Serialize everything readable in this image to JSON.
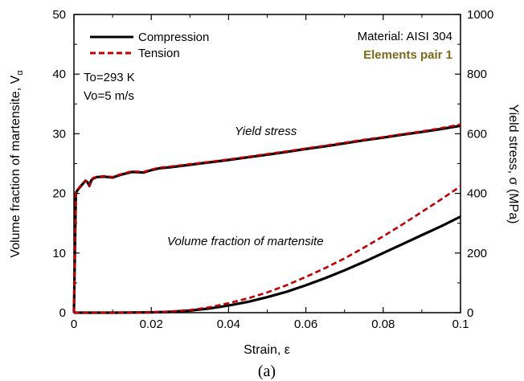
{
  "chart_data": {
    "type": "line",
    "caption": "(a)",
    "xlabel": "Strain, ε",
    "ylabel_left_main": "Volume fraction of martensite, V",
    "ylabel_left_sub": "α",
    "ylabel_right": "Yield stress, σ (MPa)",
    "xlim": [
      0,
      0.1
    ],
    "ylim_left": [
      0,
      50
    ],
    "ylim_right": [
      0,
      1000
    ],
    "x_ticks": [
      0,
      0.02,
      0.04,
      0.06,
      0.08,
      0.1
    ],
    "x_tick_labels": [
      "0",
      "0.02",
      "0.04",
      "0.06",
      "0.08",
      "0.1"
    ],
    "y_left_ticks": [
      0,
      10,
      20,
      30,
      40,
      50
    ],
    "y_left_tick_labels": [
      "0",
      "10",
      "20",
      "30",
      "40",
      "50"
    ],
    "y_right_ticks": [
      0,
      200,
      400,
      600,
      800,
      1000
    ],
    "y_right_tick_labels": [
      "0",
      "200",
      "400",
      "600",
      "800",
      "1000"
    ],
    "grid": false,
    "legend_placement": "top-left",
    "legend": [
      {
        "label": "Compression",
        "color": "#000000",
        "style": "solid"
      },
      {
        "label": "Tension",
        "color": "#c00000",
        "style": "dashed"
      }
    ],
    "annotations": {
      "material": "Material: AISI 304",
      "elements": "Elements pair 1",
      "elements_color": "#7a6a1a",
      "temperature": "To=293 K",
      "velocity": "Vo=5 m/s",
      "yield_label": "Yield stress",
      "vf_label": "Volume fraction of martensite"
    },
    "series": [
      {
        "name": "Compression",
        "quantity": "Yield stress",
        "axis": "right",
        "color": "#000000",
        "dash": "solid",
        "x": [
          0,
          0.0005,
          0.001,
          0.002,
          0.003,
          0.0035,
          0.004,
          0.0045,
          0.005,
          0.006,
          0.008,
          0.01,
          0.012,
          0.015,
          0.018,
          0.02,
          0.022,
          0.025,
          0.03,
          0.035,
          0.04,
          0.045,
          0.05,
          0.055,
          0.06,
          0.065,
          0.07,
          0.075,
          0.08,
          0.085,
          0.09,
          0.095,
          0.1
        ],
        "y": [
          0,
          402,
          412,
          428,
          442,
          438,
          425,
          444,
          450,
          455,
          456,
          453,
          462,
          472,
          470,
          478,
          484,
          488,
          496,
          504,
          512,
          521,
          530,
          539,
          549,
          558,
          568,
          578,
          587,
          597,
          606,
          616,
          627
        ]
      },
      {
        "name": "Tension",
        "quantity": "Yield stress",
        "axis": "right",
        "color": "#c00000",
        "dash": "dashed",
        "x": [
          0,
          0.0005,
          0.001,
          0.002,
          0.003,
          0.0035,
          0.004,
          0.0045,
          0.005,
          0.006,
          0.008,
          0.01,
          0.012,
          0.015,
          0.018,
          0.02,
          0.022,
          0.025,
          0.03,
          0.035,
          0.04,
          0.045,
          0.05,
          0.055,
          0.06,
          0.065,
          0.07,
          0.075,
          0.08,
          0.085,
          0.09,
          0.095,
          0.1
        ],
        "y": [
          0,
          404,
          414,
          430,
          444,
          436,
          424,
          446,
          452,
          456,
          458,
          455,
          464,
          474,
          472,
          480,
          486,
          490,
          498,
          506,
          514,
          523,
          532,
          541,
          551,
          560,
          570,
          580,
          589,
          599,
          608,
          619,
          631
        ]
      },
      {
        "name": "Compression",
        "quantity": "Volume fraction of martensite",
        "axis": "left",
        "color": "#000000",
        "dash": "solid",
        "x": [
          0,
          0.01,
          0.02,
          0.025,
          0.03,
          0.035,
          0.04,
          0.045,
          0.05,
          0.055,
          0.06,
          0.065,
          0.07,
          0.075,
          0.08,
          0.085,
          0.09,
          0.095,
          0.1
        ],
        "y": [
          0,
          0,
          0.05,
          0.15,
          0.35,
          0.7,
          1.2,
          1.8,
          2.6,
          3.5,
          4.6,
          5.8,
          7.1,
          8.5,
          10.0,
          11.5,
          13.0,
          14.5,
          16.1
        ]
      },
      {
        "name": "Tension",
        "quantity": "Volume fraction of martensite",
        "axis": "left",
        "color": "#c00000",
        "dash": "dashed",
        "x": [
          0,
          0.01,
          0.02,
          0.025,
          0.03,
          0.035,
          0.04,
          0.045,
          0.05,
          0.055,
          0.06,
          0.065,
          0.07,
          0.075,
          0.08,
          0.085,
          0.09,
          0.095,
          0.1
        ],
        "y": [
          0,
          0,
          0.08,
          0.2,
          0.45,
          0.9,
          1.6,
          2.4,
          3.4,
          4.6,
          6.0,
          7.5,
          9.1,
          10.9,
          12.8,
          14.8,
          16.9,
          19.0,
          21.2
        ]
      }
    ]
  }
}
